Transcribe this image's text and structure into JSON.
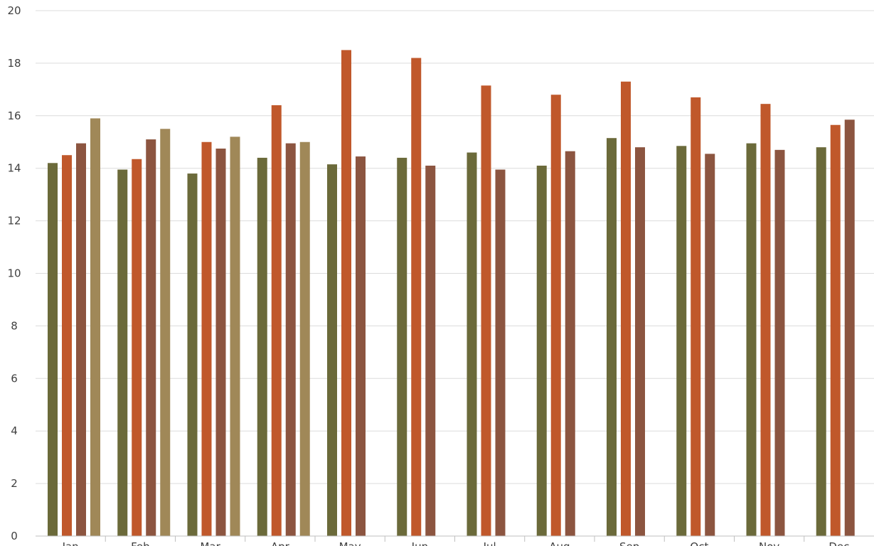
{
  "chart_data": {
    "type": "bar",
    "title": "",
    "xlabel": "",
    "ylabel": "",
    "ylim": [
      0,
      20
    ],
    "yticks": [
      0,
      2,
      4,
      6,
      8,
      10,
      12,
      14,
      16,
      18,
      20
    ],
    "grid": true,
    "legend": "none",
    "categories": [
      "Jan",
      "Feb",
      "Mar",
      "Apr",
      "May",
      "Jun",
      "Jul",
      "Aug",
      "Sep",
      "Oct",
      "Nov",
      "Dec"
    ],
    "series": [
      {
        "color": "#6b6a3a",
        "values": [
          14.2,
          13.95,
          13.8,
          14.4,
          14.15,
          14.4,
          14.6,
          14.1,
          15.15,
          14.85,
          14.95,
          14.8
        ]
      },
      {
        "color": "#c0582b",
        "values": [
          14.5,
          14.35,
          15.0,
          16.4,
          18.5,
          18.2,
          17.15,
          16.8,
          17.3,
          16.7,
          16.45,
          15.65
        ]
      },
      {
        "color": "#8c5540",
        "values": [
          14.95,
          15.1,
          14.75,
          14.95,
          14.45,
          14.1,
          13.95,
          14.65,
          14.8,
          14.55,
          14.7,
          15.85
        ]
      },
      {
        "color": "#a08858",
        "values": [
          15.9,
          15.5,
          15.2,
          15.0,
          null,
          null,
          null,
          null,
          null,
          null,
          null,
          null
        ]
      }
    ]
  }
}
